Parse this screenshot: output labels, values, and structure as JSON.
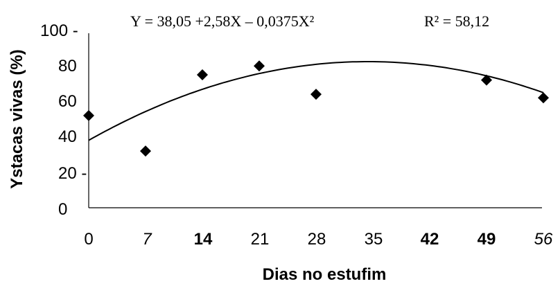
{
  "chart_data": {
    "type": "scatter",
    "equation": "Y = 38,05 +2,58X – 0,0375X²",
    "r_squared": "R² = 58,12",
    "xlabel": "Dias no estufim",
    "ylabel": "Ystacas vivas (%)",
    "x_ticks": [
      "0",
      "7",
      "14",
      "21",
      "28",
      "35",
      "42",
      "49",
      "56"
    ],
    "y_ticks": [
      "100 -",
      "80",
      "60",
      "40",
      "20 -",
      "0"
    ],
    "ylim": [
      0,
      100
    ],
    "xlim": [
      0,
      56
    ],
    "points": [
      {
        "x": 0,
        "y": 52
      },
      {
        "x": 7,
        "y": 32
      },
      {
        "x": 14,
        "y": 75
      },
      {
        "x": 21,
        "y": 80
      },
      {
        "x": 28,
        "y": 64
      },
      {
        "x": 49,
        "y": 72
      },
      {
        "x": 56,
        "y": 62
      }
    ],
    "fit": {
      "a": 38.05,
      "b": 2.58,
      "c": -0.0375
    },
    "grid": false
  }
}
